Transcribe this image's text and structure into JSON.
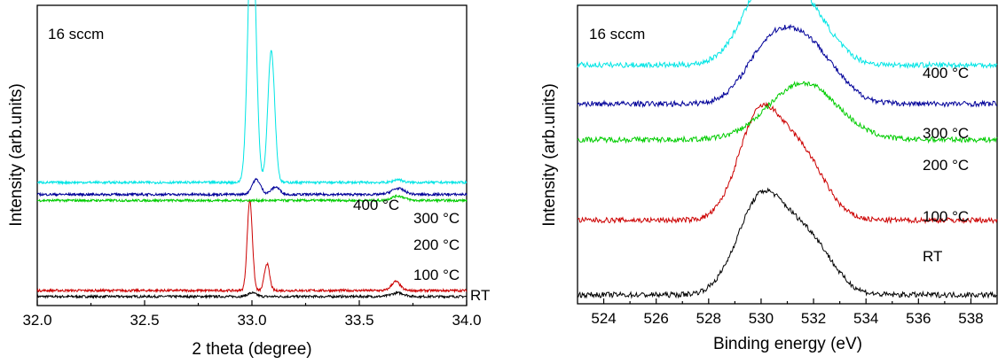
{
  "chart_data": [
    {
      "type": "line",
      "panel": "left",
      "title": "",
      "annotation": "16 sccm",
      "xlabel": "2 theta (degree)",
      "ylabel": "Intensity (arb.units)",
      "xlim": [
        32.0,
        34.0
      ],
      "xticks": [
        "32.0",
        "32.5",
        "33.0",
        "33.5",
        "34.0"
      ],
      "grid": false,
      "colors": {
        "RT": "#000000",
        "100": "#cc0000",
        "200": "#00cc00",
        "300": "#000099",
        "400": "#00e5e5"
      },
      "series": [
        {
          "name": "RT",
          "label": "RT",
          "baseline": 0.03,
          "peaks": [
            [
              33.0,
              0.012,
              0.02
            ],
            [
              33.68,
              0.012,
              0.03
            ]
          ]
        },
        {
          "name": "100 °C",
          "label": "100 °C",
          "baseline": 0.05,
          "peaks": [
            [
              32.99,
              0.3,
              0.012
            ],
            [
              33.07,
              0.09,
              0.012
            ],
            [
              33.67,
              0.03,
              0.02
            ]
          ]
        },
        {
          "name": "200 °C",
          "label": "200 °C",
          "baseline": 0.35,
          "peaks": [
            [
              33.68,
              0.015,
              0.03
            ]
          ]
        },
        {
          "name": "300 °C",
          "label": "300 °C",
          "baseline": 0.37,
          "peaks": [
            [
              33.02,
              0.05,
              0.02
            ],
            [
              33.11,
              0.025,
              0.02
            ],
            [
              33.68,
              0.02,
              0.03
            ]
          ]
        },
        {
          "name": "400 °C",
          "label": "400 °C",
          "baseline": 0.41,
          "peaks": [
            [
              33.0,
              0.92,
              0.018
            ],
            [
              33.09,
              0.44,
              0.016
            ],
            [
              33.68,
              0.01,
              0.02
            ]
          ]
        }
      ]
    },
    {
      "type": "line",
      "panel": "right",
      "title": "",
      "annotation": "16 sccm",
      "xlabel": "Binding energy (eV)",
      "ylabel": "Intensity (arb.units)",
      "xlim": [
        523,
        539
      ],
      "xticks": [
        "524",
        "526",
        "528",
        "530",
        "532",
        "534",
        "536",
        "538"
      ],
      "grid": false,
      "colors": {
        "RT": "#000000",
        "100": "#cc0000",
        "200": "#00cc00",
        "300": "#000099",
        "400": "#00e5e5"
      },
      "series": [
        {
          "name": "RT",
          "label": "RT",
          "baseline": 0.03,
          "peaks": [
            [
              530.0,
              0.32,
              0.9
            ],
            [
              531.8,
              0.18,
              0.9
            ]
          ]
        },
        {
          "name": "100 °C",
          "label": "100 °C",
          "baseline": 0.28,
          "peaks": [
            [
              529.9,
              0.33,
              0.8
            ],
            [
              531.5,
              0.22,
              0.9
            ]
          ]
        },
        {
          "name": "200 °C",
          "label": "200 °C",
          "baseline": 0.55,
          "peaks": [
            [
              531.6,
              0.19,
              1.3
            ]
          ]
        },
        {
          "name": "300 °C",
          "label": "300 °C",
          "baseline": 0.67,
          "peaks": [
            [
              530.2,
              0.14,
              0.9
            ],
            [
              531.7,
              0.2,
              1.1
            ]
          ]
        },
        {
          "name": "400 °C",
          "label": "400 °C",
          "baseline": 0.8,
          "peaks": [
            [
              530.4,
              0.3,
              1.0
            ],
            [
              532.0,
              0.12,
              0.9
            ]
          ]
        }
      ]
    }
  ]
}
